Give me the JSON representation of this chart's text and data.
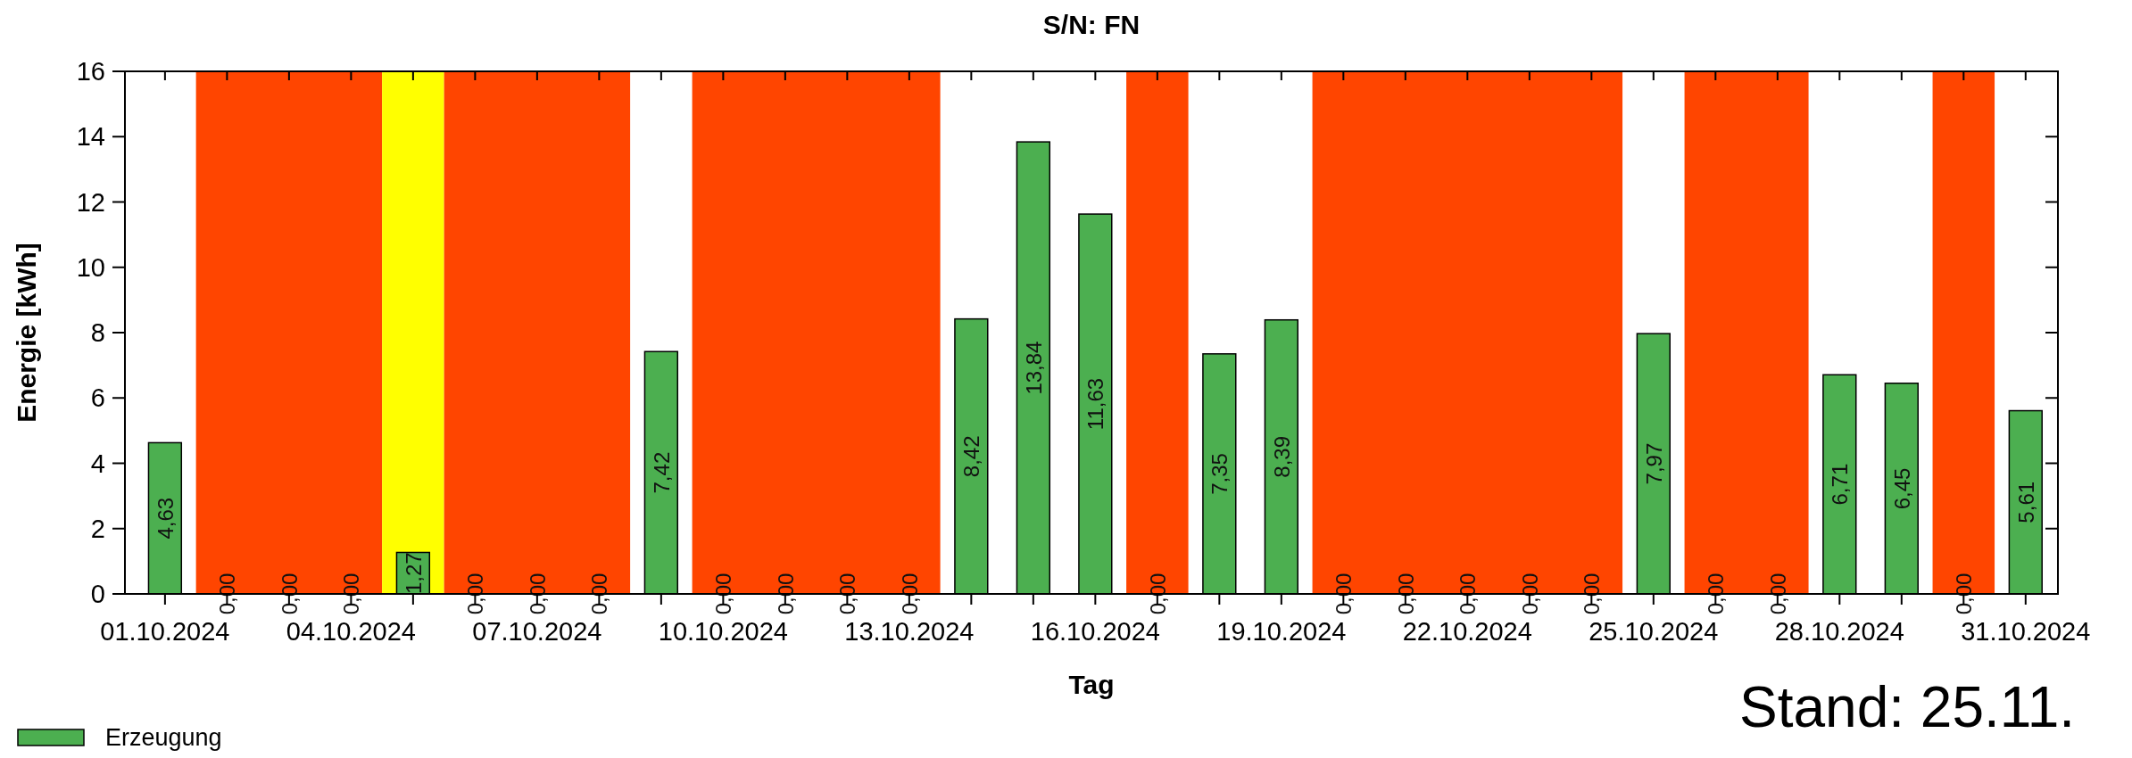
{
  "chart_data": {
    "type": "bar",
    "title": "S/N: FN",
    "xlabel": "Tag",
    "ylabel": "Energie [kWh]",
    "annotations": [
      "Stand: 25.11."
    ],
    "x": [
      "2024-10-01",
      "2024-10-02",
      "2024-10-03",
      "2024-10-04",
      "2024-10-05",
      "2024-10-06",
      "2024-10-07",
      "2024-10-08",
      "2024-10-09",
      "2024-10-10",
      "2024-10-11",
      "2024-10-12",
      "2024-10-13",
      "2024-10-14",
      "2024-10-15",
      "2024-10-16",
      "2024-10-17",
      "2024-10-18",
      "2024-10-19",
      "2024-10-20",
      "2024-10-21",
      "2024-10-22",
      "2024-10-23",
      "2024-10-24",
      "2024-10-25",
      "2024-10-26",
      "2024-10-27",
      "2024-10-28",
      "2024-10-29",
      "2024-10-30",
      "2024-10-31"
    ],
    "series": [
      {
        "name": "Erzeugung",
        "color": "#4caf50",
        "values": [
          4.63,
          0,
          0,
          0,
          1.27,
          0,
          0,
          0,
          7.42,
          0,
          0,
          0,
          0,
          8.42,
          13.84,
          11.63,
          0,
          7.35,
          8.39,
          0,
          0,
          0,
          0,
          0,
          7.97,
          0,
          0,
          6.71,
          6.45,
          0,
          5.61
        ],
        "value_labels": [
          "4,63",
          "0,00",
          "0,00",
          "0,00",
          "1,27",
          "0,00",
          "0,00",
          "0,00",
          "7,42",
          "0,00",
          "0,00",
          "0,00",
          "0,00",
          "8,42",
          "13,84",
          "11,63",
          "0,00",
          "7,35",
          "8,39",
          "0,00",
          "0,00",
          "0,00",
          "0,00",
          "0,00",
          "7,97",
          "0,00",
          "0,00",
          "6,71",
          "6,45",
          "0,00",
          "5,61"
        ]
      }
    ],
    "xlim": [
      "2024-09-30T08:30",
      "2024-10-31T12:30"
    ],
    "xticks": [
      {
        "value": "2024-10-01",
        "label": "01.10.2024"
      },
      {
        "value": "2024-10-02",
        "label": null
      },
      {
        "value": "2024-10-03",
        "label": null
      },
      {
        "value": "2024-10-04",
        "label": "04.10.2024"
      },
      {
        "value": "2024-10-05",
        "label": null
      },
      {
        "value": "2024-10-06",
        "label": null
      },
      {
        "value": "2024-10-07",
        "label": "07.10.2024"
      },
      {
        "value": "2024-10-08",
        "label": null
      },
      {
        "value": "2024-10-09",
        "label": null
      },
      {
        "value": "2024-10-10",
        "label": "10.10.2024"
      },
      {
        "value": "2024-10-11",
        "label": null
      },
      {
        "value": "2024-10-12",
        "label": null
      },
      {
        "value": "2024-10-13",
        "label": "13.10.2024"
      },
      {
        "value": "2024-10-14",
        "label": null
      },
      {
        "value": "2024-10-15",
        "label": null
      },
      {
        "value": "2024-10-16",
        "label": "16.10.2024"
      },
      {
        "value": "2024-10-17",
        "label": null
      },
      {
        "value": "2024-10-18",
        "label": null
      },
      {
        "value": "2024-10-19",
        "label": "19.10.2024"
      },
      {
        "value": "2024-10-20",
        "label": null
      },
      {
        "value": "2024-10-21",
        "label": null
      },
      {
        "value": "2024-10-22",
        "label": "22.10.2024"
      },
      {
        "value": "2024-10-23",
        "label": null
      },
      {
        "value": "2024-10-24",
        "label": null
      },
      {
        "value": "2024-10-25",
        "label": "25.10.2024"
      },
      {
        "value": "2024-10-26",
        "label": null
      },
      {
        "value": "2024-10-27",
        "label": null
      },
      {
        "value": "2024-10-28",
        "label": "28.10.2024"
      },
      {
        "value": "2024-10-29",
        "label": null
      },
      {
        "value": "2024-10-30",
        "label": null
      },
      {
        "value": "2024-10-31",
        "label": "31.10.2024"
      }
    ],
    "ylim": [
      0,
      16
    ],
    "yticks": [
      0,
      2,
      4,
      6,
      8,
      10,
      12,
      14,
      16
    ],
    "bands": [
      {
        "axis": "x",
        "from": "2024-10-01T12:00",
        "to": "2024-10-04T12:00",
        "color": "#ff4500"
      },
      {
        "axis": "x",
        "from": "2024-10-04T12:00",
        "to": "2024-10-05T12:00",
        "color": "#ffff00"
      },
      {
        "axis": "x",
        "from": "2024-10-05T12:00",
        "to": "2024-10-08T12:00",
        "color": "#ff4500"
      },
      {
        "axis": "x",
        "from": "2024-10-09T12:00",
        "to": "2024-10-13T12:00",
        "color": "#ff4500"
      },
      {
        "axis": "x",
        "from": "2024-10-16T12:00",
        "to": "2024-10-17T12:00",
        "color": "#ff4500"
      },
      {
        "axis": "x",
        "from": "2024-10-19T12:00",
        "to": "2024-10-24T12:00",
        "color": "#ff4500"
      },
      {
        "axis": "x",
        "from": "2024-10-25T12:00",
        "to": "2024-10-27T12:00",
        "color": "#ff4500"
      },
      {
        "axis": "x",
        "from": "2024-10-29T12:00",
        "to": "2024-10-30T12:00",
        "color": "#ff4500"
      }
    ],
    "legend": "bottom left"
  }
}
